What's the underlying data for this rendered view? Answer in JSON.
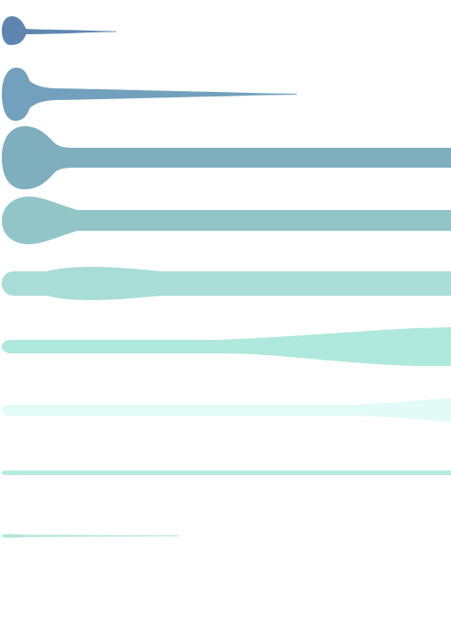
{
  "shapes": [
    {
      "name": "shape-1",
      "color": "#5f86b0"
    },
    {
      "name": "shape-2",
      "color": "#72a0bd"
    },
    {
      "name": "shape-3",
      "color": "#7faebf"
    },
    {
      "name": "shape-4",
      "color": "#92c5c8"
    },
    {
      "name": "shape-5",
      "color": "#a8ddd7"
    },
    {
      "name": "shape-6",
      "color": "#afe8dc"
    },
    {
      "name": "shape-7",
      "color": "#e3fbf6"
    },
    {
      "name": "shape-8",
      "color": "#b3ebdf"
    },
    {
      "name": "shape-9",
      "color": "#b0e6dc"
    }
  ]
}
